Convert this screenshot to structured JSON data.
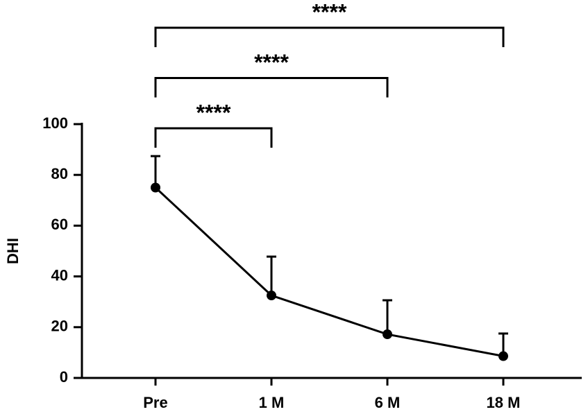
{
  "chart_data": {
    "type": "line",
    "y_label": "DHI",
    "categories": [
      "Pre",
      "1 M",
      "6 M",
      "18 M"
    ],
    "values": [
      75,
      32.5,
      17.2,
      8.6
    ],
    "errors": [
      12.4,
      15.3,
      13.4,
      8.9
    ],
    "color": "#000000",
    "ylim": [
      0,
      100
    ],
    "yticks": [
      0,
      20,
      40,
      60,
      80,
      100
    ],
    "comparisons": [
      {
        "from": "Pre",
        "to": "1 M",
        "label": "****"
      },
      {
        "from": "Pre",
        "to": "6 M",
        "label": "****"
      },
      {
        "from": "Pre",
        "to": "18 M",
        "label": "****"
      }
    ]
  }
}
